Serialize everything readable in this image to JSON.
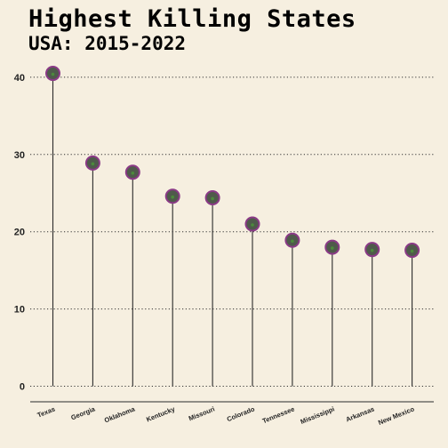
{
  "title": "Highest Killing States",
  "subtitle": "USA: 2015-2022",
  "colors": {
    "background": "#f6efe0",
    "stem": "#2b2b2b",
    "point_fill": "#4f5a4b",
    "point_stroke": "#8a3a86",
    "point_center": "#4c8a3c",
    "grid": "#333333"
  },
  "chart_data": {
    "type": "lollipop",
    "categories": [
      "Texas",
      "Georgia",
      "Oklahoma",
      "Kentucky",
      "Missouri",
      "Colorado",
      "Tennessee",
      "Mississippi",
      "Arkansas",
      "New Mexico"
    ],
    "values": [
      40.5,
      28.9,
      27.7,
      24.6,
      24.4,
      21.0,
      18.9,
      18.0,
      17.7,
      17.6
    ],
    "yticks": [
      0,
      10,
      20,
      30,
      40
    ],
    "ylim": [
      0,
      42
    ],
    "grid": "horizontal dotted",
    "xlabel": "",
    "ylabel": ""
  }
}
